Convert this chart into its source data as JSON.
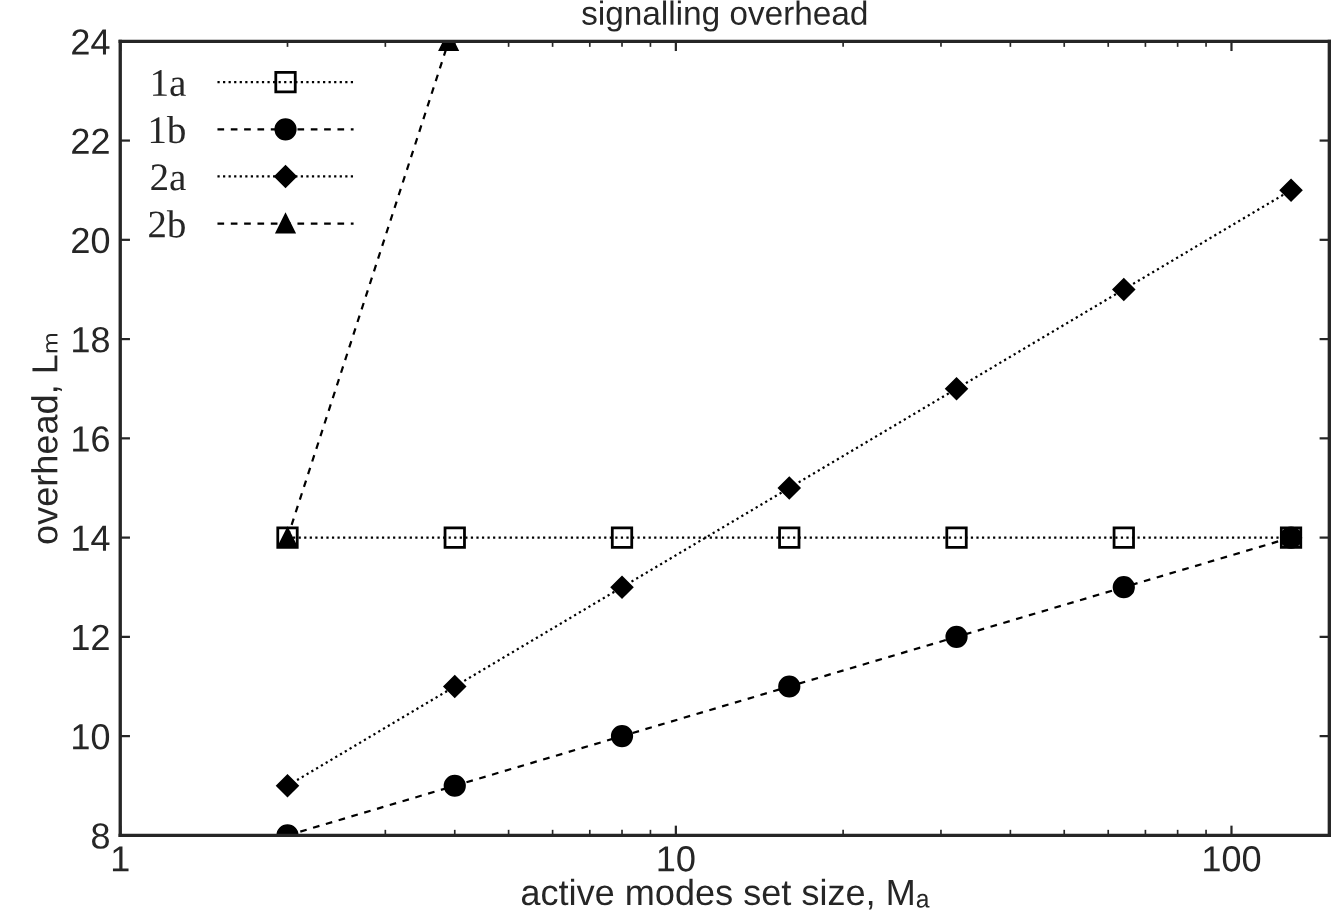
{
  "chart_data": {
    "type": "line",
    "title": "signalling overhead",
    "xlabel": "active modes set size, Mₐ",
    "ylabel": "overhead, Lₘ",
    "log": "x",
    "xlim": [
      1,
      150
    ],
    "xticks": [
      1,
      10,
      100
    ],
    "ylim": [
      8,
      24
    ],
    "yticks": [
      8,
      10,
      12,
      14,
      16,
      18,
      20,
      22,
      24
    ],
    "grid": false,
    "legend": "top left",
    "series": [
      {
        "name": "1a",
        "color": "#000000",
        "marker": "square",
        "line_style": "dotted",
        "x": [
          2,
          4,
          8,
          16,
          32,
          64,
          128
        ],
        "values": [
          14,
          14,
          14,
          14,
          14,
          14,
          14
        ]
      },
      {
        "name": "1b",
        "color": "#000000",
        "marker": "circle",
        "line_style": "dashed",
        "x": [
          2,
          4,
          8,
          16,
          32,
          64,
          128
        ],
        "values": [
          8,
          9,
          10,
          11,
          12,
          13,
          14
        ]
      },
      {
        "name": "2a",
        "color": "#000000",
        "marker": "diamond",
        "line_style": "dotted",
        "x": [
          2,
          4,
          8,
          16,
          32,
          64,
          128
        ],
        "values": [
          9,
          11,
          13,
          15,
          17,
          19,
          21
        ]
      },
      {
        "name": "2b",
        "color": "#000000",
        "marker": "triangle",
        "line_style": "dashed",
        "x": [
          2,
          3.9
        ],
        "values": [
          14,
          24
        ]
      }
    ]
  }
}
